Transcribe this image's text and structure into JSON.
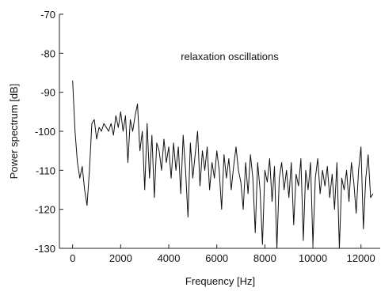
{
  "chart_data": {
    "type": "line",
    "xlabel": "Frequency [Hz]",
    "ylabel": "Power spectrum [dB]",
    "annotation": "relaxation oscillations",
    "x": [
      0,
      100,
      200,
      300,
      400,
      500,
      600,
      700,
      800,
      900,
      1000,
      1100,
      1200,
      1300,
      1400,
      1500,
      1600,
      1700,
      1800,
      1900,
      2000,
      2100,
      2200,
      2300,
      2400,
      2500,
      2600,
      2700,
      2800,
      2900,
      3000,
      3100,
      3200,
      3300,
      3400,
      3500,
      3600,
      3700,
      3800,
      3900,
      4000,
      4100,
      4200,
      4300,
      4400,
      4500,
      4600,
      4700,
      4800,
      4900,
      5000,
      5100,
      5200,
      5300,
      5400,
      5500,
      5600,
      5700,
      5800,
      5900,
      6000,
      6100,
      6200,
      6300,
      6400,
      6500,
      6600,
      6700,
      6800,
      6900,
      7000,
      7100,
      7200,
      7300,
      7400,
      7500,
      7600,
      7700,
      7800,
      7900,
      8000,
      8100,
      8200,
      8300,
      8400,
      8500,
      8600,
      8700,
      8800,
      8900,
      9000,
      9100,
      9200,
      9300,
      9400,
      9500,
      9600,
      9700,
      9800,
      9900,
      10000,
      10100,
      10200,
      10300,
      10400,
      10500,
      10600,
      10700,
      10800,
      10900,
      11000,
      11100,
      11200,
      11300,
      11400,
      11500,
      11600,
      11700,
      11800,
      11900,
      12000,
      12100,
      12200,
      12300,
      12400,
      12500
    ],
    "series": [
      {
        "name": "Power spectrum",
        "color": "#111111",
        "values": [
          -87,
          -100,
          -108,
          -112,
          -109,
          -115,
          -119,
          -110,
          -98,
          -97,
          -102,
          -99,
          -100,
          -98,
          -99,
          -100,
          -98,
          -101,
          -96,
          -99,
          -95,
          -100,
          -96,
          -108,
          -97,
          -100,
          -96,
          -93,
          -105,
          -100,
          -115,
          -98,
          -112,
          -101,
          -117,
          -103,
          -105,
          -110,
          -102,
          -108,
          -104,
          -112,
          -103,
          -110,
          -104,
          -116,
          -101,
          -110,
          -122,
          -103,
          -112,
          -106,
          -100,
          -114,
          -105,
          -110,
          -104,
          -115,
          -108,
          -112,
          -105,
          -110,
          -120,
          -106,
          -112,
          -107,
          -115,
          -109,
          -104,
          -110,
          -113,
          -120,
          -108,
          -116,
          -106,
          -112,
          -126,
          -108,
          -115,
          -129,
          -110,
          -113,
          -107,
          -118,
          -109,
          -130,
          -112,
          -108,
          -115,
          -110,
          -117,
          -108,
          -124,
          -111,
          -114,
          -107,
          -128,
          -110,
          -115,
          -108,
          -129,
          -112,
          -107,
          -116,
          -110,
          -114,
          -109,
          -117,
          -111,
          -120,
          -108,
          -130,
          -112,
          -115,
          -110,
          -118,
          -108,
          -113,
          -121,
          -110,
          -104,
          -125,
          -112,
          -106,
          -117,
          -116
        ]
      }
    ],
    "xlim": [
      -550,
      12800
    ],
    "ylim": [
      -130,
      -70
    ],
    "xticks": [
      0,
      2000,
      4000,
      6000,
      8000,
      10000,
      12000
    ],
    "yticks": [
      -130,
      -120,
      -110,
      -100,
      -90,
      -80,
      -70
    ]
  }
}
